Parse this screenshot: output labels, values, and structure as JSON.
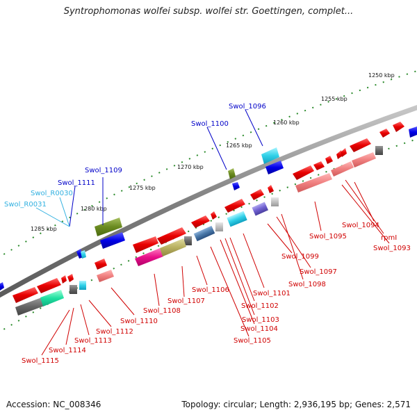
{
  "title": "Syntrophomonas wolfei subsp. wolfei str. Goettingen, complet...",
  "footer": {
    "accession": "Accession: NC_008346",
    "summary": "Topology: circular; Length: 2,936,195 bp; Genes: 2,571"
  },
  "ruler": [
    "1250 kbp",
    "1255 kbp",
    "1260 kbp",
    "1265 kbp",
    "1270 kbp",
    "1275 kbp",
    "1280 kbp",
    "1285 kbp"
  ],
  "colors": {
    "backbone": "#808080",
    "forward_gene": "#e01010",
    "reverse_gene": "#f08080",
    "forward_label": "#d00000",
    "blue_label": "#0000c8",
    "rna_label": "#30b0e0",
    "tick": "#2a8a2a"
  },
  "labels": {
    "swol_1096": "Swol_1096",
    "swol_1100": "Swol_1100",
    "swol_1109": "Swol_1109",
    "swol_1111": "Swol_1111",
    "swol_r0030": "Swol_R0030",
    "swol_r0031": "Swol_R0031",
    "swol_1094": "Swol_1094",
    "rpml": "rpmI",
    "swol_1093": "Swol_1093",
    "swol_1095": "Swol_1095",
    "swol_1099": "Swol_1099",
    "swol_1097": "Swol_1097",
    "swol_1098": "Swol_1098",
    "swol_1101": "Swol_1101",
    "swol_1102": "Swol_1102",
    "swol_1103": "Swol_1103",
    "swol_1104": "Swol_1104",
    "swol_1105": "Swol_1105",
    "swol_1106": "Swol_1106",
    "swol_1107": "Swol_1107",
    "swol_1108": "Swol_1108",
    "swol_1110": "Swol_1110",
    "swol_1112": "Swol_1112",
    "swol_1113": "Swol_1113",
    "swol_1114": "Swol_1114",
    "swol_1115": "Swol_1115"
  }
}
